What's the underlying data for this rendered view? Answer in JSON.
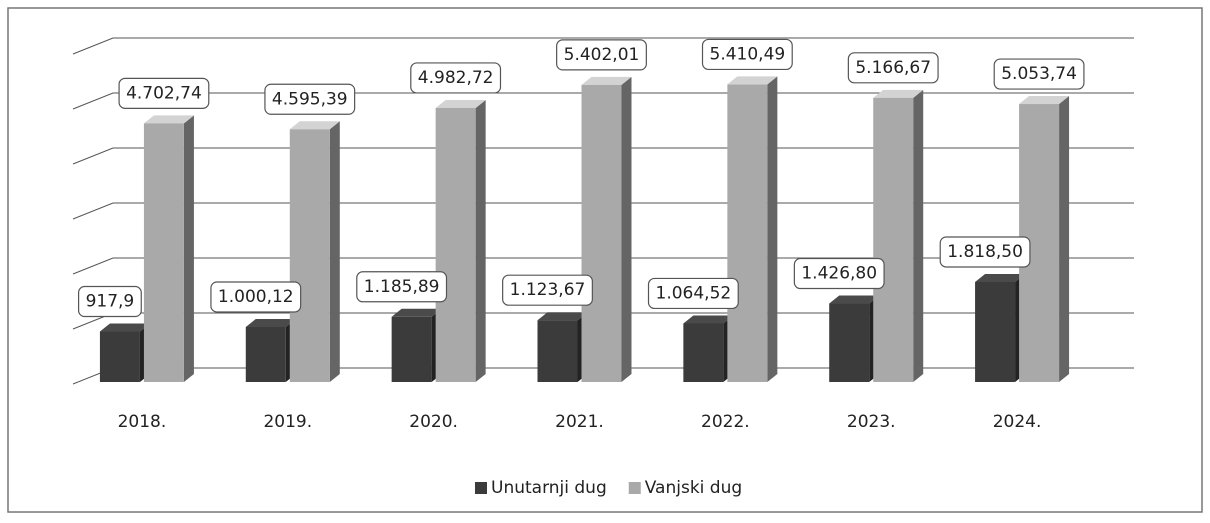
{
  "chart_data": {
    "type": "bar3d",
    "categories": [
      "2018.",
      "2019.",
      "2020.",
      "2021.",
      "2022.",
      "2023.",
      "2024."
    ],
    "series": [
      {
        "name": "Unutarnji dug",
        "color": "#3b3b3b",
        "values": [
          917.9,
          1000.12,
          1185.89,
          1123.67,
          1064.52,
          1426.8,
          1818.5
        ],
        "value_labels": [
          "917,9",
          "1.000,12",
          "1.185,89",
          "1.123,67",
          "1.064,52",
          "1.426,80",
          "1.818,50"
        ]
      },
      {
        "name": "Vanjski dug",
        "color": "#a9a9a9",
        "values": [
          4702.74,
          4595.39,
          4982.72,
          5402.01,
          5410.49,
          5166.67,
          5053.74
        ],
        "value_labels": [
          "4.702,74",
          "4.595,39",
          "4.982,72",
          "5.402,01",
          "5.410,49",
          "5.166,67",
          "5.053,74"
        ]
      }
    ],
    "ylim": [
      0,
      6000
    ],
    "yticks": [
      0,
      1000,
      2000,
      3000,
      4000,
      5000,
      6000
    ],
    "grid": true,
    "legend": "bottom"
  }
}
